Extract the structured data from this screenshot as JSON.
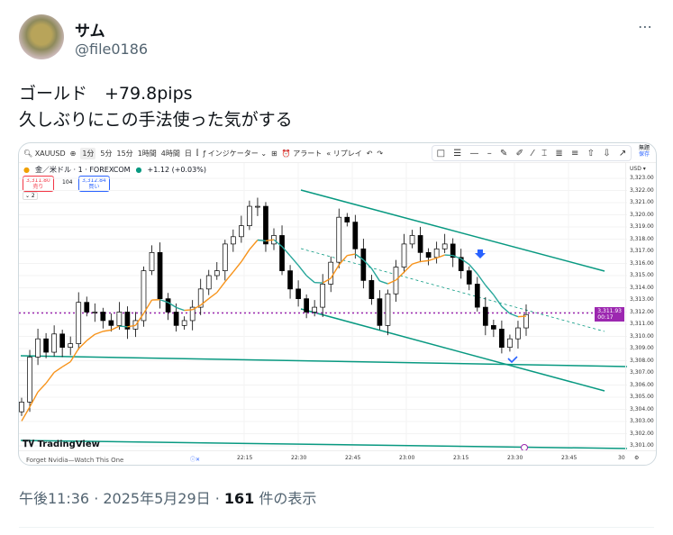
{
  "author": {
    "name": "サム",
    "handle": "@file0186"
  },
  "more_icon": "⋯",
  "tweet": {
    "line1": "ゴールド　+79.8pips",
    "line2": "久しぶりにこの手法使った気がする"
  },
  "meta": {
    "time": "午後11:36 · 2025年5月29日 · ",
    "views": "161",
    "views_suffix": " 件の表示"
  },
  "tv": {
    "symbol": "XAUUSD",
    "intervals": [
      "1分",
      "5分",
      "15分",
      "1時間",
      "4時間",
      "日"
    ],
    "active_interval": "1分",
    "indicators": "インジケーター",
    "alert": "アラート",
    "replay": "リプレイ",
    "title": "金／米ドル · 1 · FOREXCOM",
    "change": "+1.12 (+0.03%)",
    "sell_price": "3,311.80",
    "sell_label": "売り",
    "spread": "104",
    "buy_price": "3,312.84",
    "buy_label": "買い",
    "collapse": "⌄ 2",
    "currency": "USD ▾",
    "unnamed": "無題",
    "save": "保存",
    "current_price": "3,311.93",
    "countdown": "00:17",
    "logo": "TradingView",
    "ad": "Forget Nvidia—Watch This One",
    "colors": {
      "up": "#ffffff",
      "down": "#000000",
      "ma_up": "#f7931a",
      "ma_down": "#26a69a",
      "trend": "#089981",
      "price_line": "#9c27b0"
    }
  },
  "chart_data": {
    "type": "candlestick",
    "title": "金／米ドル · 1 · FOREXCOM",
    "y_ticks": [
      3323,
      3322,
      3321,
      3320,
      3319,
      3318,
      3317,
      3316,
      3315,
      3314,
      3313,
      3312,
      3311,
      3310,
      3309,
      3308,
      3307,
      3306,
      3305,
      3304,
      3303,
      3302,
      3301
    ],
    "x_ticks": [
      "22:15",
      "22:30",
      "22:45",
      "23:00",
      "23:15",
      "23:30",
      "23:45",
      "30"
    ],
    "ylim": [
      3300.5,
      3323.8
    ],
    "closes": [
      3304.6,
      3308.3,
      3309.8,
      3308.7,
      3310.2,
      3309.1,
      3309.4,
      3312.8,
      3312.0,
      3312.0,
      3311.3,
      3310.9,
      3312.0,
      3310.6,
      3311.3,
      3315.4,
      3316.9,
      3313.1,
      3312.0,
      3310.9,
      3311.3,
      3312.4,
      3313.9,
      3315.0,
      3315.4,
      3317.6,
      3318.2,
      3319.1,
      3320.7,
      3320.7,
      3317.6,
      3318.3,
      3315.4,
      3313.9,
      3313.1,
      3312.0,
      3312.4,
      3314.3,
      3316.1,
      3319.8,
      3319.4,
      3317.2,
      3314.6,
      3313.1,
      3310.9,
      3313.5,
      3315.7,
      3317.6,
      3318.3,
      3316.9,
      3316.5,
      3317.2,
      3317.6,
      3316.5,
      3315.4,
      3314.3,
      3312.4,
      3310.9,
      3310.6,
      3309.1,
      3309.8,
      3310.7,
      3311.8
    ],
    "current_price": 3311.93
  }
}
